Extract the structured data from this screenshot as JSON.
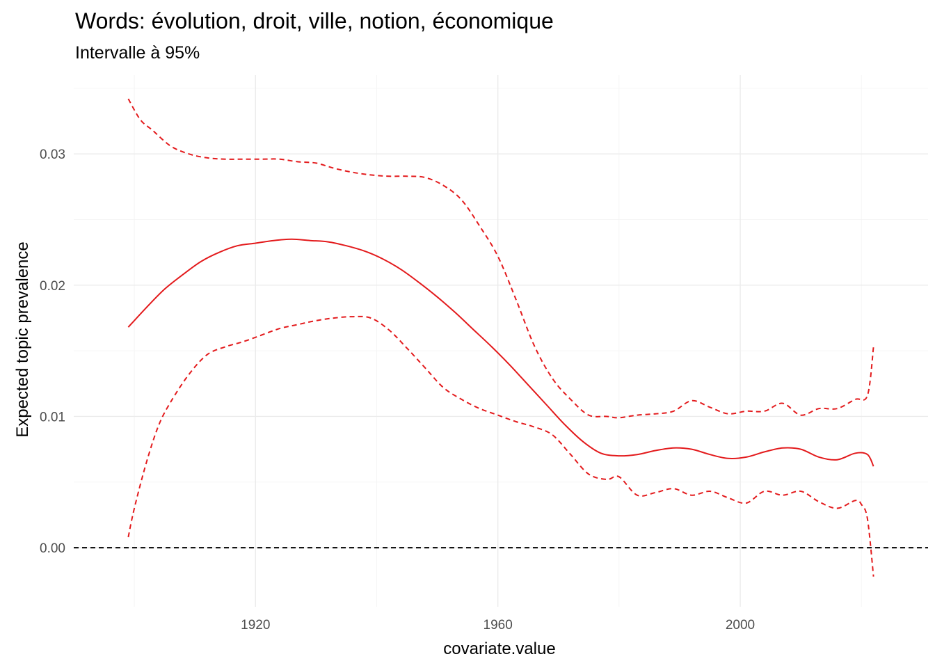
{
  "chart_data": {
    "type": "line",
    "title": "Words: évolution, droit, ville, notion, économique",
    "subtitle": "Intervalle à 95%",
    "xlabel": "covariate.value",
    "ylabel": "Expected topic prevalence",
    "xlim": [
      1890,
      2031
    ],
    "ylim": [
      -0.0045,
      0.036
    ],
    "x_ticks": [
      {
        "value": 1920,
        "label": "1920"
      },
      {
        "value": 1960,
        "label": "1960"
      },
      {
        "value": 2000,
        "label": "2000"
      }
    ],
    "y_ticks": [
      {
        "value": 0.0,
        "label": "0.00"
      },
      {
        "value": 0.01,
        "label": "0.01"
      },
      {
        "value": 0.02,
        "label": "0.02"
      },
      {
        "value": 0.03,
        "label": "0.03"
      }
    ],
    "reference_line": {
      "y": 0,
      "style": "dashed",
      "color": "#000000"
    },
    "grid": true,
    "colors": {
      "series": "#e31a1c",
      "grid": "#ebebeb",
      "reference": "#000000"
    },
    "series": [
      {
        "role": "estimate",
        "style": "solid",
        "x": [
          1899,
          1902,
          1905,
          1908,
          1911,
          1914,
          1917,
          1920,
          1923,
          1926,
          1929,
          1932,
          1935,
          1938,
          1941,
          1944,
          1947,
          1950,
          1953,
          1956,
          1959,
          1962,
          1965,
          1968,
          1971,
          1974,
          1977,
          1980,
          1983,
          1986,
          1989,
          1992,
          1995,
          1998,
          2001,
          2004,
          2007,
          2010,
          2013,
          2016,
          2019,
          2021,
          2022
        ],
        "y": [
          0.0168,
          0.0183,
          0.0197,
          0.0208,
          0.0218,
          0.0225,
          0.023,
          0.0232,
          0.0234,
          0.0235,
          0.0234,
          0.0233,
          0.023,
          0.0226,
          0.022,
          0.0212,
          0.0202,
          0.0191,
          0.0179,
          0.0166,
          0.0153,
          0.0139,
          0.0124,
          0.0109,
          0.0094,
          0.0081,
          0.0072,
          0.007,
          0.0071,
          0.0074,
          0.0076,
          0.0075,
          0.0071,
          0.0068,
          0.0069,
          0.0073,
          0.0076,
          0.0075,
          0.0069,
          0.0067,
          0.0072,
          0.0071,
          0.0062
        ]
      },
      {
        "role": "upper-95",
        "style": "dashed",
        "x": [
          1899,
          1901,
          1903,
          1906,
          1909,
          1912,
          1915,
          1918,
          1921,
          1924,
          1927,
          1930,
          1933,
          1936,
          1939,
          1942,
          1945,
          1948,
          1951,
          1954,
          1957,
          1960,
          1963,
          1966,
          1969,
          1972,
          1975,
          1978,
          1980,
          1983,
          1986,
          1989,
          1992,
          1995,
          1998,
          2001,
          2004,
          2007,
          2010,
          2013,
          2016,
          2019,
          2021,
          2022
        ],
        "y": [
          0.0342,
          0.0326,
          0.0318,
          0.0306,
          0.03,
          0.0297,
          0.0296,
          0.0296,
          0.0296,
          0.0296,
          0.0294,
          0.0293,
          0.0289,
          0.0286,
          0.0284,
          0.0283,
          0.0283,
          0.0282,
          0.0276,
          0.0265,
          0.0245,
          0.0222,
          0.0189,
          0.0154,
          0.0129,
          0.0113,
          0.0101,
          0.01,
          0.0099,
          0.0101,
          0.0102,
          0.0104,
          0.0112,
          0.0107,
          0.0102,
          0.0104,
          0.0104,
          0.011,
          0.0101,
          0.0106,
          0.0106,
          0.0113,
          0.0116,
          0.0153
        ]
      },
      {
        "role": "lower-95",
        "style": "dashed",
        "x": [
          1899,
          1900,
          1902,
          1904,
          1906,
          1909,
          1912,
          1915,
          1918,
          1921,
          1924,
          1927,
          1930,
          1933,
          1936,
          1939,
          1942,
          1945,
          1948,
          1951,
          1954,
          1957,
          1960,
          1963,
          1966,
          1969,
          1972,
          1975,
          1978,
          1980,
          1983,
          1986,
          1989,
          1992,
          1995,
          1998,
          2001,
          2004,
          2007,
          2010,
          2013,
          2016,
          2019,
          2020,
          2021,
          2022
        ],
        "y": [
          0.0008,
          0.003,
          0.0065,
          0.0093,
          0.0111,
          0.0132,
          0.0147,
          0.0153,
          0.0157,
          0.0162,
          0.0167,
          0.017,
          0.0173,
          0.0175,
          0.0176,
          0.0175,
          0.0166,
          0.0152,
          0.0137,
          0.0122,
          0.0113,
          0.0106,
          0.0101,
          0.0096,
          0.0092,
          0.0086,
          0.0071,
          0.0056,
          0.0052,
          0.0054,
          0.004,
          0.0042,
          0.0045,
          0.004,
          0.0043,
          0.0038,
          0.0034,
          0.0043,
          0.004,
          0.0043,
          0.0035,
          0.003,
          0.0036,
          0.0033,
          0.0022,
          -0.0022
        ]
      }
    ]
  }
}
